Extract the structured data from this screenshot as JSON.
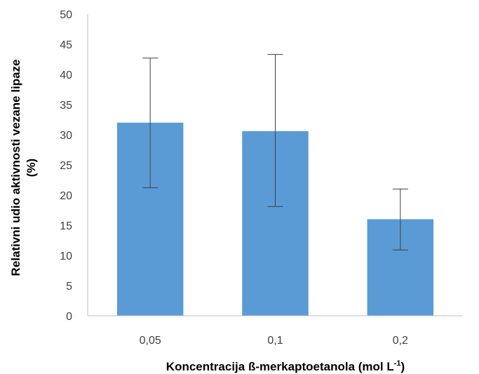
{
  "chart_data": {
    "type": "bar",
    "categories": [
      "0,05",
      "0,1",
      "0,2"
    ],
    "values": [
      32,
      30.6,
      16
    ],
    "error_low": [
      21.2,
      18.1,
      10.9
    ],
    "error_high": [
      42.7,
      43.3,
      21
    ],
    "ylim": [
      0,
      50
    ],
    "yticks": [
      "0",
      "5",
      "10",
      "15",
      "20",
      "25",
      "30",
      "35",
      "40",
      "45",
      "50"
    ],
    "ylabel_line1": "Relativni udio aktivnosti vezane lipaze",
    "ylabel_line2": "(%)",
    "xlabel": "Koncentracija ß-merkaptoetanola (mol L",
    "xlabel_sup": "-1",
    "xlabel_end": ")",
    "grid": false,
    "legend": "none",
    "bar_color": "#5b9bd5"
  }
}
